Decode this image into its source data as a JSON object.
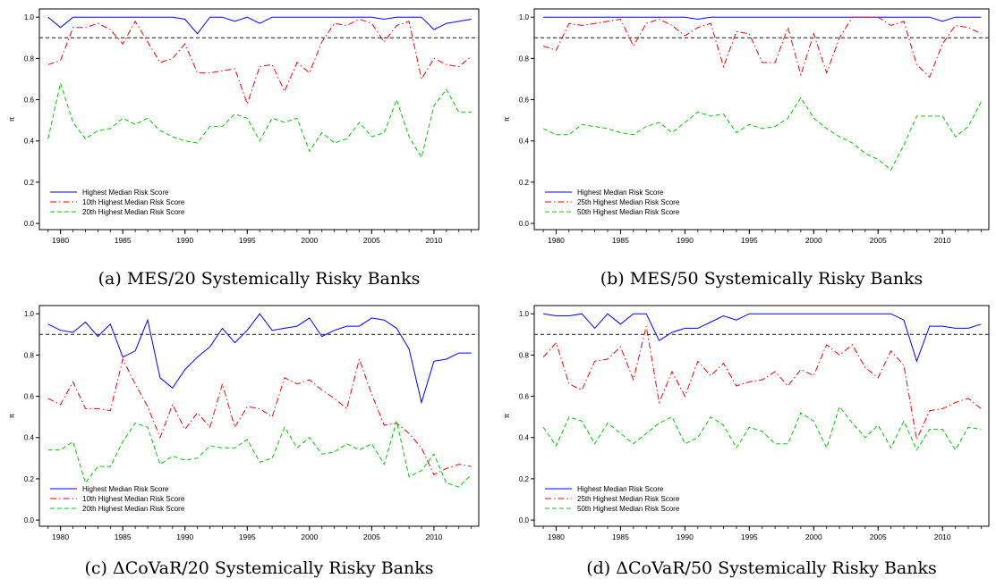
{
  "chart_data": [
    {
      "type": "line",
      "caption": "(a) MES/20 Systemically Risky Banks",
      "ylabel": "π",
      "xlim": [
        1978.3,
        2013.6
      ],
      "ylim": [
        -0.03,
        1.04
      ],
      "xticks": [
        1980,
        1985,
        1990,
        1995,
        2000,
        2005,
        2010
      ],
      "yticks": [
        "0.0",
        "0.2",
        "0.4",
        "0.6",
        "0.8",
        "1.0"
      ],
      "reference_line": 0.9,
      "legend_position": "lower-left",
      "series": [
        {
          "name": "Highest Median Risk Score",
          "color": "#0000ff",
          "style": "solid",
          "x": [
            1979,
            1980,
            1981,
            1982,
            1983,
            1984,
            1985,
            1986,
            1987,
            1988,
            1989,
            1990,
            1991,
            1992,
            1993,
            1994,
            1995,
            1996,
            1997,
            1998,
            1999,
            2000,
            2001,
            2002,
            2003,
            2004,
            2005,
            2006,
            2007,
            2008,
            2009,
            2010,
            2011,
            2012,
            2013
          ],
          "y": [
            1.0,
            0.95,
            1.0,
            1.0,
            1.0,
            1.0,
            1.0,
            1.0,
            1.0,
            1.0,
            1.0,
            0.99,
            0.92,
            1.0,
            1.0,
            0.98,
            1.0,
            0.97,
            1.0,
            1.0,
            1.0,
            1.0,
            1.0,
            1.0,
            1.0,
            1.0,
            1.0,
            0.99,
            1.0,
            1.0,
            1.0,
            0.94,
            0.97,
            0.98,
            0.99
          ]
        },
        {
          "name": "10th Highest Median Risk Score",
          "color": "#ff0000",
          "style": "dashdot",
          "x": [
            1979,
            1980,
            1981,
            1982,
            1983,
            1984,
            1985,
            1986,
            1987,
            1988,
            1989,
            1990,
            1991,
            1992,
            1993,
            1994,
            1995,
            1996,
            1997,
            1998,
            1999,
            2000,
            2001,
            2002,
            2003,
            2004,
            2005,
            2006,
            2007,
            2008,
            2009,
            2010,
            2011,
            2012,
            2013
          ],
          "y": [
            0.77,
            0.79,
            0.95,
            0.95,
            0.97,
            0.94,
            0.87,
            0.98,
            0.88,
            0.78,
            0.8,
            0.87,
            0.73,
            0.73,
            0.74,
            0.75,
            0.58,
            0.76,
            0.77,
            0.64,
            0.78,
            0.73,
            0.88,
            0.97,
            0.96,
            0.99,
            0.97,
            0.88,
            0.96,
            0.98,
            0.7,
            0.8,
            0.77,
            0.76,
            0.81
          ]
        },
        {
          "name": "20th Highest Median Risk Score",
          "color": "#00cc00",
          "style": "dashed",
          "x": [
            1979,
            1980,
            1981,
            1982,
            1983,
            1984,
            1985,
            1986,
            1987,
            1988,
            1989,
            1990,
            1991,
            1992,
            1993,
            1994,
            1995,
            1996,
            1997,
            1998,
            1999,
            2000,
            2001,
            2002,
            2003,
            2004,
            2005,
            2006,
            2007,
            2008,
            2009,
            2010,
            2011,
            2012,
            2013
          ],
          "y": [
            0.41,
            0.68,
            0.49,
            0.41,
            0.45,
            0.46,
            0.51,
            0.48,
            0.51,
            0.45,
            0.42,
            0.4,
            0.39,
            0.47,
            0.47,
            0.53,
            0.51,
            0.4,
            0.51,
            0.49,
            0.51,
            0.35,
            0.44,
            0.39,
            0.41,
            0.49,
            0.42,
            0.44,
            0.6,
            0.42,
            0.32,
            0.57,
            0.65,
            0.54,
            0.54
          ]
        }
      ]
    },
    {
      "type": "line",
      "caption": "(b) MES/50 Systemically Risky Banks",
      "ylabel": "π",
      "xlim": [
        1978.3,
        2013.6
      ],
      "ylim": [
        -0.03,
        1.04
      ],
      "xticks": [
        1980,
        1985,
        1990,
        1995,
        2000,
        2005,
        2010
      ],
      "yticks": [
        "0.0",
        "0.2",
        "0.4",
        "0.6",
        "0.8",
        "1.0"
      ],
      "reference_line": 0.9,
      "legend_position": "lower-left",
      "series": [
        {
          "name": "Highest Median Risk Score",
          "color": "#0000ff",
          "style": "solid",
          "x": [
            1979,
            1980,
            1981,
            1982,
            1983,
            1984,
            1985,
            1986,
            1987,
            1988,
            1989,
            1990,
            1991,
            1992,
            1993,
            1994,
            1995,
            1996,
            1997,
            1998,
            1999,
            2000,
            2001,
            2002,
            2003,
            2004,
            2005,
            2006,
            2007,
            2008,
            2009,
            2010,
            2011,
            2012,
            2013
          ],
          "y": [
            1.0,
            1.0,
            1.0,
            1.0,
            1.0,
            1.0,
            1.0,
            1.0,
            1.0,
            1.0,
            1.0,
            1.0,
            0.99,
            1.0,
            1.0,
            1.0,
            1.0,
            1.0,
            1.0,
            1.0,
            1.0,
            1.0,
            1.0,
            1.0,
            1.0,
            1.0,
            1.0,
            1.0,
            1.0,
            1.0,
            1.0,
            0.98,
            1.0,
            1.0,
            1.0
          ]
        },
        {
          "name": "25th Highest Median Risk Score",
          "color": "#ff0000",
          "style": "dashdot",
          "x": [
            1979,
            1980,
            1981,
            1982,
            1983,
            1984,
            1985,
            1986,
            1987,
            1988,
            1989,
            1990,
            1991,
            1992,
            1993,
            1994,
            1995,
            1996,
            1997,
            1998,
            1999,
            2000,
            2001,
            2002,
            2003,
            2004,
            2005,
            2006,
            2007,
            2008,
            2009,
            2010,
            2011,
            2012,
            2013
          ],
          "y": [
            0.86,
            0.84,
            0.97,
            0.96,
            0.97,
            0.98,
            0.99,
            0.86,
            0.97,
            0.99,
            0.96,
            0.91,
            0.95,
            0.97,
            0.76,
            0.93,
            0.92,
            0.78,
            0.78,
            0.95,
            0.72,
            0.92,
            0.73,
            0.9,
            1.0,
            1.0,
            1.0,
            0.96,
            0.98,
            0.77,
            0.71,
            0.87,
            0.96,
            0.95,
            0.92
          ]
        },
        {
          "name": "50th Highest Median Risk Score",
          "color": "#00cc00",
          "style": "dashed",
          "x": [
            1979,
            1980,
            1981,
            1982,
            1983,
            1984,
            1985,
            1986,
            1987,
            1988,
            1989,
            1990,
            1991,
            1992,
            1993,
            1994,
            1995,
            1996,
            1997,
            1998,
            1999,
            2000,
            2001,
            2002,
            2003,
            2004,
            2005,
            2006,
            2007,
            2008,
            2009,
            2010,
            2011,
            2012,
            2013
          ],
          "y": [
            0.46,
            0.43,
            0.43,
            0.48,
            0.47,
            0.46,
            0.44,
            0.43,
            0.47,
            0.49,
            0.44,
            0.49,
            0.54,
            0.52,
            0.53,
            0.44,
            0.48,
            0.46,
            0.47,
            0.51,
            0.61,
            0.51,
            0.46,
            0.42,
            0.39,
            0.34,
            0.31,
            0.26,
            0.38,
            0.52,
            0.52,
            0.52,
            0.42,
            0.47,
            0.59
          ]
        }
      ]
    },
    {
      "type": "line",
      "caption": "(c) ΔCoVaR/20 Systemically Risky Banks",
      "ylabel": "π",
      "xlim": [
        1978.3,
        2013.6
      ],
      "ylim": [
        -0.03,
        1.04
      ],
      "xticks": [
        1980,
        1985,
        1990,
        1995,
        2000,
        2005,
        2010
      ],
      "yticks": [
        "0.0",
        "0.2",
        "0.4",
        "0.6",
        "0.8",
        "1.0"
      ],
      "reference_line": 0.9,
      "legend_position": "lower-left",
      "series": [
        {
          "name": "Highest Median Risk Score",
          "color": "#0000ff",
          "style": "solid",
          "x": [
            1979,
            1980,
            1981,
            1982,
            1983,
            1984,
            1985,
            1986,
            1987,
            1988,
            1989,
            1990,
            1991,
            1992,
            1993,
            1994,
            1995,
            1996,
            1997,
            1998,
            1999,
            2000,
            2001,
            2002,
            2003,
            2004,
            2005,
            2006,
            2007,
            2008,
            2009,
            2010,
            2011,
            2012,
            2013
          ],
          "y": [
            0.95,
            0.92,
            0.91,
            0.96,
            0.89,
            0.95,
            0.79,
            0.82,
            0.97,
            0.69,
            0.64,
            0.73,
            0.79,
            0.84,
            0.93,
            0.86,
            0.92,
            1.0,
            0.92,
            0.93,
            0.94,
            0.98,
            0.89,
            0.92,
            0.94,
            0.94,
            0.98,
            0.97,
            0.93,
            0.83,
            0.57,
            0.77,
            0.78,
            0.81,
            0.81
          ]
        },
        {
          "name": "10th Highest Median Risk Score",
          "color": "#ff0000",
          "style": "dashdot",
          "x": [
            1979,
            1980,
            1981,
            1982,
            1983,
            1984,
            1985,
            1986,
            1987,
            1988,
            1989,
            1990,
            1991,
            1992,
            1993,
            1994,
            1995,
            1996,
            1997,
            1998,
            1999,
            2000,
            2001,
            2002,
            2003,
            2004,
            2005,
            2006,
            2007,
            2008,
            2009,
            2010,
            2011,
            2012,
            2013
          ],
          "y": [
            0.59,
            0.56,
            0.67,
            0.54,
            0.54,
            0.53,
            0.78,
            0.66,
            0.55,
            0.4,
            0.56,
            0.44,
            0.52,
            0.45,
            0.66,
            0.45,
            0.55,
            0.54,
            0.5,
            0.69,
            0.66,
            0.68,
            0.63,
            0.59,
            0.54,
            0.78,
            0.61,
            0.46,
            0.47,
            0.42,
            0.35,
            0.22,
            0.25,
            0.27,
            0.26
          ]
        },
        {
          "name": "20th Highest Median Risk Score",
          "color": "#00cc00",
          "style": "dashed",
          "x": [
            1979,
            1980,
            1981,
            1982,
            1983,
            1984,
            1985,
            1986,
            1987,
            1988,
            1989,
            1990,
            1991,
            1992,
            1993,
            1994,
            1995,
            1996,
            1997,
            1998,
            1999,
            2000,
            2001,
            2002,
            2003,
            2004,
            2005,
            2006,
            2007,
            2008,
            2009,
            2010,
            2011,
            2012,
            2013
          ],
          "y": [
            0.34,
            0.34,
            0.38,
            0.18,
            0.26,
            0.26,
            0.38,
            0.47,
            0.45,
            0.27,
            0.31,
            0.29,
            0.3,
            0.36,
            0.35,
            0.35,
            0.39,
            0.28,
            0.3,
            0.45,
            0.35,
            0.4,
            0.32,
            0.33,
            0.37,
            0.34,
            0.37,
            0.27,
            0.48,
            0.21,
            0.24,
            0.32,
            0.18,
            0.16,
            0.22
          ]
        }
      ]
    },
    {
      "type": "line",
      "caption": "(d) ΔCoVaR/50 Systemically Risky Banks",
      "ylabel": "π",
      "xlim": [
        1978.3,
        2013.6
      ],
      "ylim": [
        -0.03,
        1.04
      ],
      "xticks": [
        1980,
        1985,
        1990,
        1995,
        2000,
        2005,
        2010
      ],
      "yticks": [
        "0.0",
        "0.2",
        "0.4",
        "0.6",
        "0.8",
        "1.0"
      ],
      "reference_line": 0.9,
      "legend_position": "lower-left",
      "series": [
        {
          "name": "Highest Median Risk Score",
          "color": "#0000ff",
          "style": "solid",
          "x": [
            1979,
            1980,
            1981,
            1982,
            1983,
            1984,
            1985,
            1986,
            1987,
            1988,
            1989,
            1990,
            1991,
            1992,
            1993,
            1994,
            1995,
            1996,
            1997,
            1998,
            1999,
            2000,
            2001,
            2002,
            2003,
            2004,
            2005,
            2006,
            2007,
            2008,
            2009,
            2010,
            2011,
            2012,
            2013
          ],
          "y": [
            1.0,
            0.99,
            0.99,
            1.0,
            0.93,
            1.0,
            0.95,
            1.0,
            1.0,
            0.87,
            0.91,
            0.93,
            0.93,
            0.96,
            0.99,
            0.97,
            1.0,
            1.0,
            1.0,
            1.0,
            1.0,
            1.0,
            1.0,
            1.0,
            1.0,
            1.0,
            1.0,
            1.0,
            0.97,
            0.77,
            0.94,
            0.94,
            0.93,
            0.93,
            0.95
          ]
        },
        {
          "name": "25th Highest Median Risk Score",
          "color": "#ff0000",
          "style": "dashdot",
          "x": [
            1979,
            1980,
            1981,
            1982,
            1983,
            1984,
            1985,
            1986,
            1987,
            1988,
            1989,
            1990,
            1991,
            1992,
            1993,
            1994,
            1995,
            1996,
            1997,
            1998,
            1999,
            2000,
            2001,
            2002,
            2003,
            2004,
            2005,
            2006,
            2007,
            2008,
            2009,
            2010,
            2011,
            2012,
            2013
          ],
          "y": [
            0.79,
            0.86,
            0.66,
            0.63,
            0.77,
            0.78,
            0.84,
            0.68,
            0.94,
            0.57,
            0.72,
            0.6,
            0.77,
            0.7,
            0.76,
            0.65,
            0.67,
            0.68,
            0.72,
            0.65,
            0.73,
            0.7,
            0.85,
            0.8,
            0.85,
            0.74,
            0.69,
            0.82,
            0.75,
            0.39,
            0.53,
            0.54,
            0.57,
            0.59,
            0.54
          ]
        },
        {
          "name": "50th Highest Median Risk Score",
          "color": "#00cc00",
          "style": "dashed",
          "x": [
            1979,
            1980,
            1981,
            1982,
            1983,
            1984,
            1985,
            1986,
            1987,
            1988,
            1989,
            1990,
            1991,
            1992,
            1993,
            1994,
            1995,
            1996,
            1997,
            1998,
            1999,
            2000,
            2001,
            2002,
            2003,
            2004,
            2005,
            2006,
            2007,
            2008,
            2009,
            2010,
            2011,
            2012,
            2013
          ],
          "y": [
            0.45,
            0.36,
            0.5,
            0.48,
            0.37,
            0.47,
            0.42,
            0.37,
            0.42,
            0.47,
            0.5,
            0.37,
            0.4,
            0.5,
            0.46,
            0.35,
            0.45,
            0.43,
            0.37,
            0.37,
            0.52,
            0.48,
            0.35,
            0.55,
            0.47,
            0.4,
            0.46,
            0.35,
            0.48,
            0.34,
            0.44,
            0.44,
            0.34,
            0.45,
            0.44
          ]
        }
      ]
    }
  ]
}
